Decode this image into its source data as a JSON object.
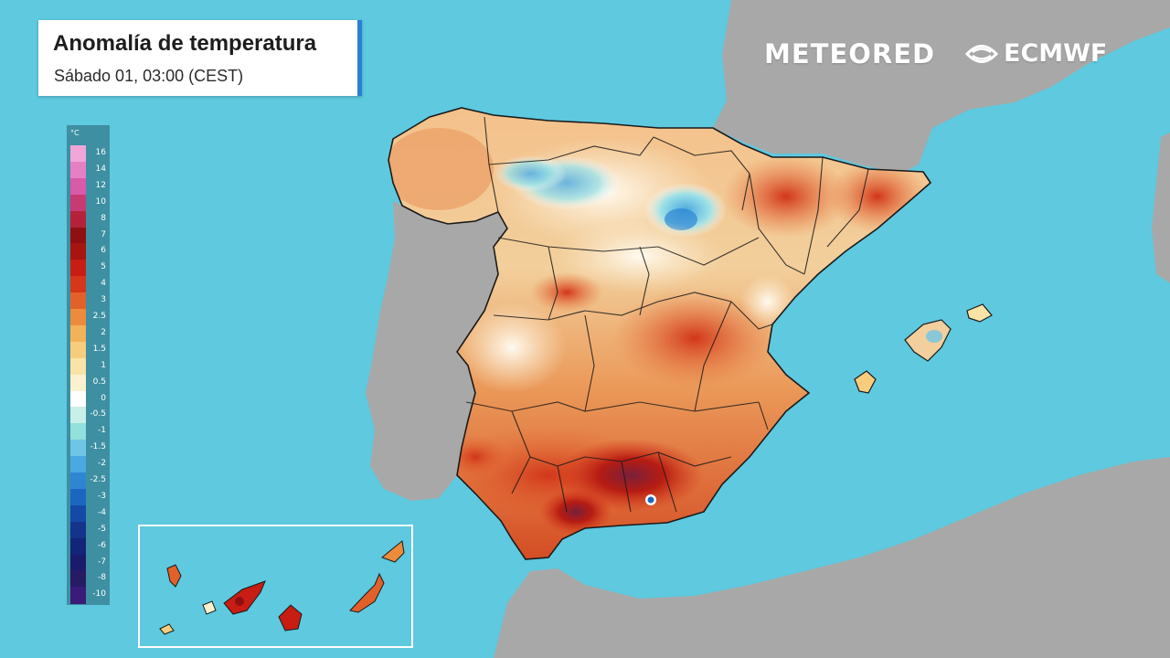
{
  "header": {
    "title": "Anomalía de temperatura",
    "subtitle": "Sábado 01, 03:00 (CEST)"
  },
  "brands": {
    "meteored": "METEORED",
    "ecmwf": "ECMWF"
  },
  "legend": {
    "unit": "°C",
    "labels": [
      "16",
      "14",
      "12",
      "10",
      "8",
      "7",
      "6",
      "5",
      "4",
      "3",
      "2.5",
      "2",
      "1.5",
      "1",
      "0.5",
      "0",
      "-0.5",
      "-1",
      "-1.5",
      "-2",
      "-2.5",
      "-3",
      "-4",
      "-5",
      "-6",
      "-7",
      "-8",
      "-10"
    ],
    "colors": [
      "#f0a6d8",
      "#e67fc4",
      "#d95aa8",
      "#c83a73",
      "#b4223a",
      "#8f0f12",
      "#a81410",
      "#c71d12",
      "#d6361a",
      "#e2612a",
      "#ec8b3c",
      "#f3b158",
      "#f7cd7d",
      "#fae3a6",
      "#fbf1cf",
      "#ffffff",
      "#c9efe9",
      "#93e0dc",
      "#6ec6e6",
      "#4aa9e0",
      "#2e86d3",
      "#1b66c0",
      "#1449a6",
      "#13348a",
      "#122578",
      "#1a1c6a",
      "#261b64",
      "#3a1b78"
    ]
  },
  "colors": {
    "sea": "#5ec9df",
    "land_other": "#a8a8a8",
    "accent": "#2a7fd4",
    "border": "#1a1a1a"
  },
  "icons": {
    "ecmwf_logo": "ecmwf-swirl-icon"
  }
}
